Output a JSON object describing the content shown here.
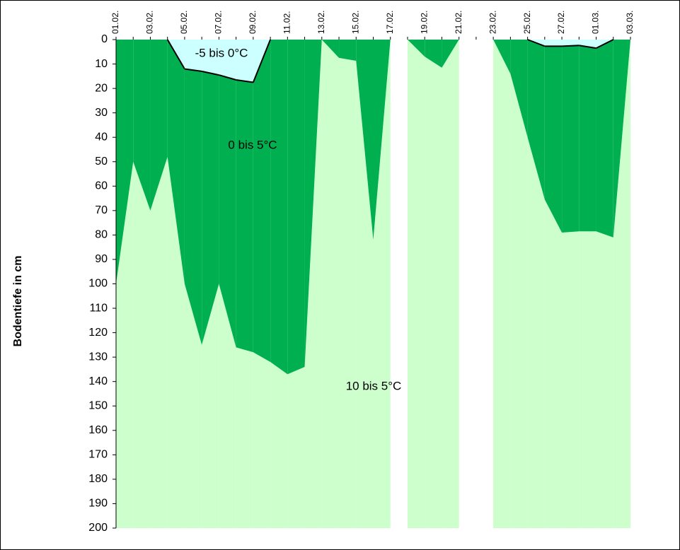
{
  "chart_data": {
    "type": "depth-area",
    "y_label": "Bodentiefe in cm",
    "categories": [
      "01.02.",
      null,
      "03.02.",
      null,
      "05.02.",
      null,
      "07.02.",
      null,
      "09.02.",
      null,
      "11.02.",
      null,
      "13.02.",
      null,
      "15.02.",
      null,
      "17.02.",
      null,
      "19.02.",
      null,
      "21.02.",
      null,
      "23.02.",
      null,
      "25.02.",
      null,
      "27.02.",
      null,
      "01.03.",
      null,
      "03.03."
    ],
    "series": [
      {
        "name": "-5 bis 0°C",
        "color": "#ccffff",
        "values": [
          0,
          0,
          0,
          0,
          12,
          13,
          14.5,
          16.5,
          17.5,
          0,
          0,
          0,
          0,
          0,
          0,
          0,
          0,
          0,
          0,
          0,
          0,
          0,
          0,
          0,
          0,
          2.7,
          2.7,
          2.4,
          3.5,
          0,
          0
        ]
      },
      {
        "name": "0 bis 5°C",
        "color": "#00b050",
        "values": [
          100,
          50,
          70,
          48,
          100,
          125,
          100,
          126,
          128,
          132,
          137,
          134,
          0,
          7.5,
          8.7,
          82,
          0,
          0,
          7,
          11.5,
          0,
          0,
          0,
          14,
          40,
          65.5,
          79,
          78.5,
          78.5,
          81,
          0
        ]
      },
      {
        "name": "10 bis 5°C",
        "color": "#ccffcc"
      }
    ],
    "ylim": [
      200,
      0
    ],
    "yticks": [
      0,
      10,
      20,
      30,
      40,
      50,
      60,
      70,
      80,
      90,
      100,
      110,
      120,
      130,
      140,
      150,
      160,
      170,
      180,
      190,
      200
    ]
  }
}
